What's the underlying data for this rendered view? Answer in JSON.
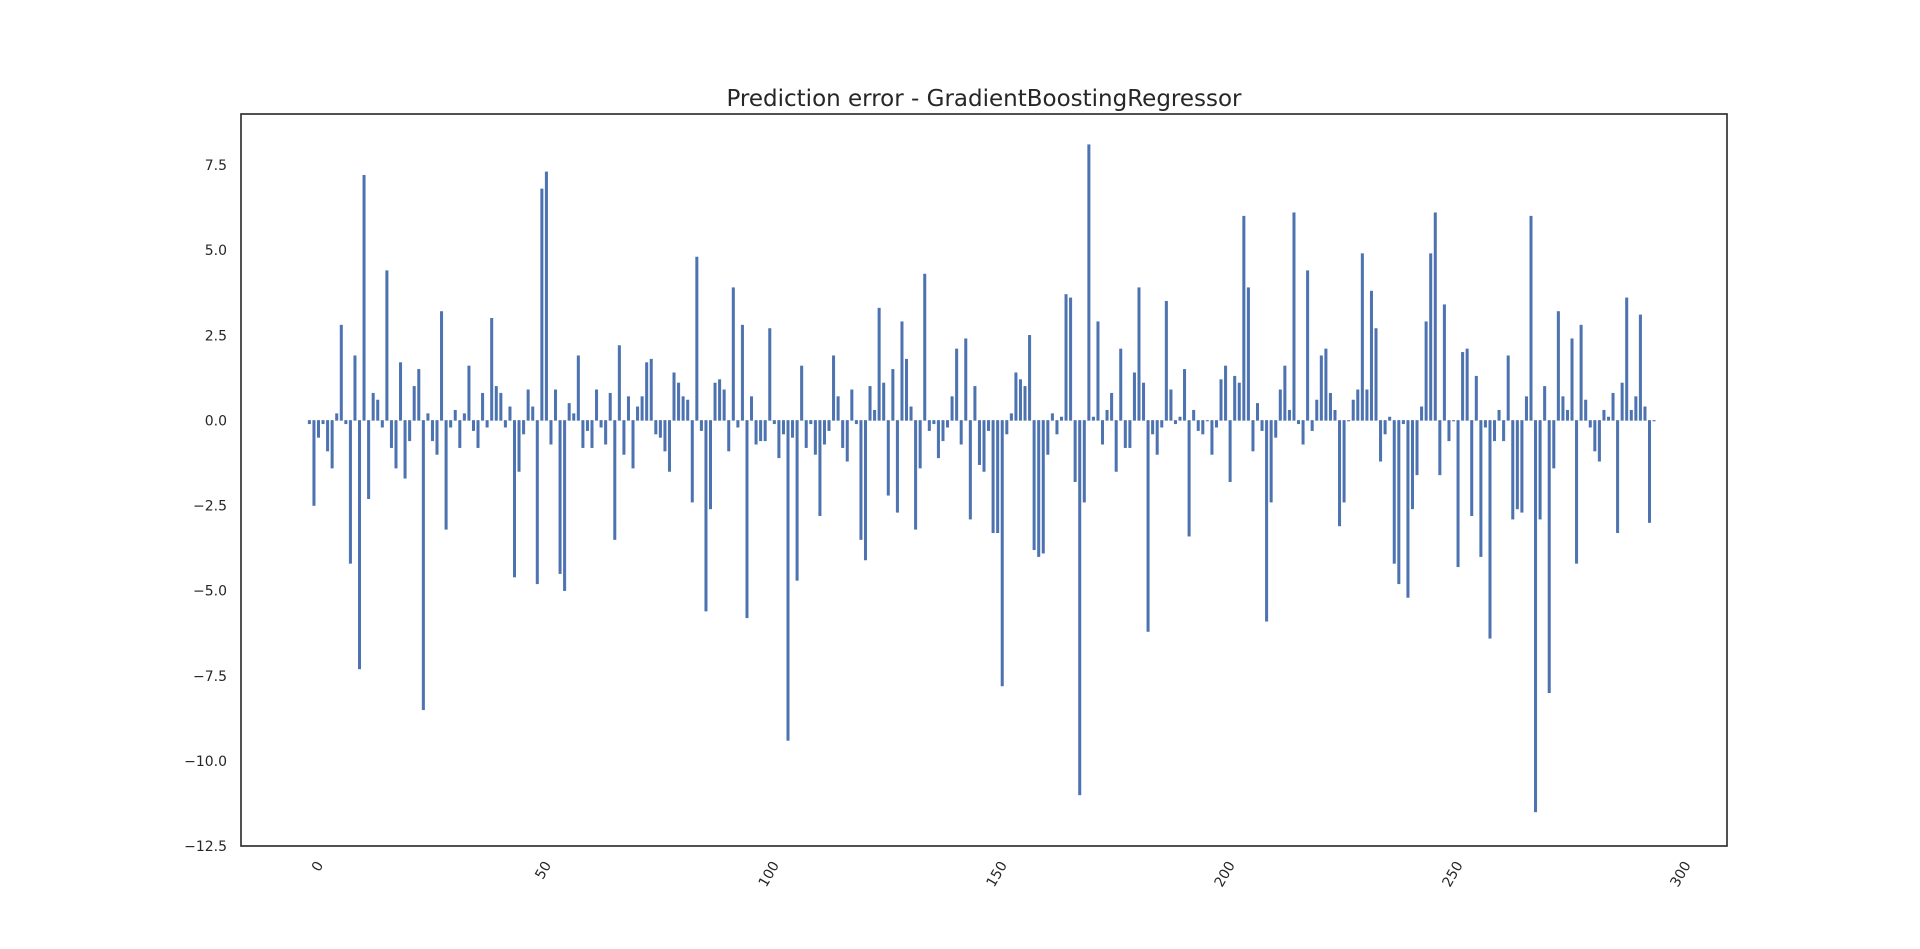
{
  "chart_data": {
    "type": "bar",
    "title": "Prediction error - GradientBoostingRegressor",
    "xlabel": "",
    "ylabel": "",
    "xlim": [
      -15,
      311
    ],
    "ylim": [
      -12.5,
      9.0
    ],
    "x_ticks": [
      0,
      50,
      100,
      150,
      200,
      250,
      300
    ],
    "x_tick_labels": [
      "0",
      "50",
      "100",
      "150",
      "200",
      "250",
      "300"
    ],
    "y_ticks": [
      7.5,
      5.0,
      2.5,
      0.0,
      -2.5,
      -5.0,
      -7.5,
      -10.0,
      -12.5
    ],
    "y_tick_labels": [
      "7.5",
      "5.0",
      "2.5",
      "0.0",
      "−2.5",
      "−5.0",
      "−7.5",
      "−10.0",
      "−12.5"
    ],
    "grid": false,
    "legend": "none",
    "bar_color": "#4c72b0",
    "x": [
      0,
      1,
      2,
      3,
      4,
      5,
      6,
      7,
      8,
      9,
      10,
      11,
      12,
      13,
      14,
      15,
      16,
      17,
      18,
      19,
      20,
      21,
      22,
      23,
      24,
      25,
      26,
      27,
      28,
      29,
      30,
      31,
      32,
      33,
      34,
      35,
      36,
      37,
      38,
      39,
      40,
      41,
      42,
      43,
      44,
      45,
      46,
      47,
      48,
      49,
      50,
      51,
      52,
      53,
      54,
      55,
      56,
      57,
      58,
      59,
      60,
      61,
      62,
      63,
      64,
      65,
      66,
      67,
      68,
      69,
      70,
      71,
      72,
      73,
      74,
      75,
      76,
      77,
      78,
      79,
      80,
      81,
      82,
      83,
      84,
      85,
      86,
      87,
      88,
      89,
      90,
      91,
      92,
      93,
      94,
      95,
      96,
      97,
      98,
      99,
      100,
      101,
      102,
      103,
      104,
      105,
      106,
      107,
      108,
      109,
      110,
      111,
      112,
      113,
      114,
      115,
      116,
      117,
      118,
      119,
      120,
      121,
      122,
      123,
      124,
      125,
      126,
      127,
      128,
      129,
      130,
      131,
      132,
      133,
      134,
      135,
      136,
      137,
      138,
      139,
      140,
      141,
      142,
      143,
      144,
      145,
      146,
      147,
      148,
      149,
      150,
      151,
      152,
      153,
      154,
      155,
      156,
      157,
      158,
      159,
      160,
      161,
      162,
      163,
      164,
      165,
      166,
      167,
      168,
      169,
      170,
      171,
      172,
      173,
      174,
      175,
      176,
      177,
      178,
      179,
      180,
      181,
      182,
      183,
      184,
      185,
      186,
      187,
      188,
      189,
      190,
      191,
      192,
      193,
      194,
      195,
      196,
      197,
      198,
      199,
      200,
      201,
      202,
      203,
      204,
      205,
      206,
      207,
      208,
      209,
      210,
      211,
      212,
      213,
      214,
      215,
      216,
      217,
      218,
      219,
      220,
      221,
      222,
      223,
      224,
      225,
      226,
      227,
      228,
      229,
      230,
      231,
      232,
      233,
      234,
      235,
      236,
      237,
      238,
      239,
      240,
      241,
      242,
      243,
      244,
      245,
      246,
      247,
      248,
      249,
      250,
      251,
      252,
      253,
      254,
      255,
      256,
      257,
      258,
      259,
      260,
      261,
      262,
      263,
      264,
      265,
      266,
      267,
      268,
      269,
      270,
      271,
      272,
      273,
      274,
      275,
      276,
      277,
      278,
      279,
      280,
      281,
      282,
      283,
      284,
      285,
      286,
      287,
      288,
      289,
      290,
      291,
      292,
      293,
      294,
      295
    ],
    "values": [
      -0.1,
      -2.5,
      -0.5,
      -0.1,
      -0.9,
      -1.4,
      0.2,
      2.8,
      -0.1,
      -4.2,
      1.9,
      -7.3,
      7.2,
      -2.3,
      0.8,
      0.6,
      -0.2,
      4.4,
      -0.8,
      -1.4,
      1.7,
      -1.7,
      -0.6,
      1.0,
      1.5,
      -8.5,
      0.2,
      -0.6,
      -1.0,
      3.2,
      -3.2,
      -0.2,
      0.3,
      -0.8,
      0.2,
      1.6,
      -0.3,
      -0.8,
      0.8,
      -0.2,
      3.0,
      1.0,
      0.8,
      -0.2,
      0.4,
      -4.6,
      -1.5,
      -0.4,
      0.9,
      0.4,
      -4.8,
      6.8,
      7.3,
      -0.7,
      0.9,
      -4.5,
      -5.0,
      0.5,
      0.2,
      1.9,
      -0.8,
      -0.3,
      -0.8,
      0.9,
      -0.2,
      -0.7,
      0.8,
      -3.5,
      2.2,
      -1.0,
      0.7,
      -1.4,
      0.4,
      0.7,
      1.7,
      1.8,
      -0.4,
      -0.5,
      -0.9,
      -1.5,
      1.4,
      1.1,
      0.7,
      0.6,
      -2.4,
      4.8,
      -0.3,
      -5.6,
      -2.6,
      1.1,
      1.2,
      0.9,
      -0.9,
      3.9,
      -0.2,
      2.8,
      -5.8,
      0.7,
      -0.7,
      -0.6,
      -0.6,
      2.7,
      -0.1,
      -1.1,
      -0.4,
      -9.4,
      -0.5,
      -4.7,
      1.6,
      -0.8,
      -0.1,
      -1.0,
      -2.8,
      -0.7,
      -0.3,
      1.9,
      0.7,
      -0.8,
      -1.2,
      0.9,
      -0.1,
      -3.5,
      -4.1,
      1.0,
      0.3,
      3.3,
      1.1,
      -2.2,
      1.5,
      -2.7,
      2.9,
      1.8,
      0.4,
      -3.2,
      -1.4,
      4.3,
      -0.3,
      -0.1,
      -1.1,
      -0.6,
      -0.2,
      0.7,
      2.1,
      -0.7,
      2.4,
      -2.9,
      1.0,
      -1.3,
      -1.5,
      -0.3,
      -3.3,
      -3.3,
      -7.8,
      -0.4,
      0.2,
      1.4,
      1.2,
      1.0,
      2.5,
      -3.8,
      -4.0,
      -3.9,
      -1.0,
      0.2,
      -0.4,
      0.1,
      3.7,
      3.6,
      -1.8,
      -11.0,
      -2.4,
      8.1,
      0.1,
      2.9,
      -0.7,
      0.3,
      0.8,
      -1.5,
      2.1,
      -0.8,
      -0.8,
      1.4,
      3.9,
      1.1,
      -6.2,
      -0.4,
      -1.0,
      -0.2,
      3.5,
      0.9,
      -0.1,
      0.1,
      1.5,
      -3.4,
      0.3,
      -0.3,
      -0.4,
      0.0,
      -1.0,
      -0.2,
      1.2,
      1.6,
      -1.8,
      1.3,
      1.1,
      6.0,
      3.9,
      -0.9,
      0.5,
      -0.3,
      -5.9,
      -2.4,
      -0.5,
      0.9,
      1.6,
      0.3,
      6.1,
      -0.1,
      -0.7,
      4.4,
      -0.3,
      0.6,
      1.9,
      2.1,
      0.8,
      0.3,
      -3.1,
      -2.4,
      0.0,
      0.6,
      0.9,
      4.9,
      0.9,
      3.8,
      2.7,
      -1.2,
      -0.4,
      0.1,
      -4.2,
      -4.8,
      -0.1,
      -5.2,
      -2.6,
      -1.6,
      0.4,
      2.9,
      4.9,
      6.1,
      -1.6,
      3.4,
      -0.6,
      0.0,
      -4.3,
      2.0,
      2.1,
      -2.8,
      1.3,
      -4.0,
      -0.2,
      -6.4,
      -0.6,
      0.3,
      -0.6,
      1.9,
      -2.9,
      -2.6,
      -2.7,
      0.7,
      6.0,
      -11.5,
      -2.9,
      1.0,
      -8.0,
      -1.4,
      3.2,
      0.7,
      0.3,
      2.4,
      -4.2,
      2.8,
      0.6,
      -0.2,
      -0.9,
      -1.2,
      0.3,
      0.1,
      0.8,
      -3.3,
      1.1,
      3.6,
      0.3,
      0.7,
      3.1,
      0.4,
      -3.0,
      0.0
    ]
  }
}
